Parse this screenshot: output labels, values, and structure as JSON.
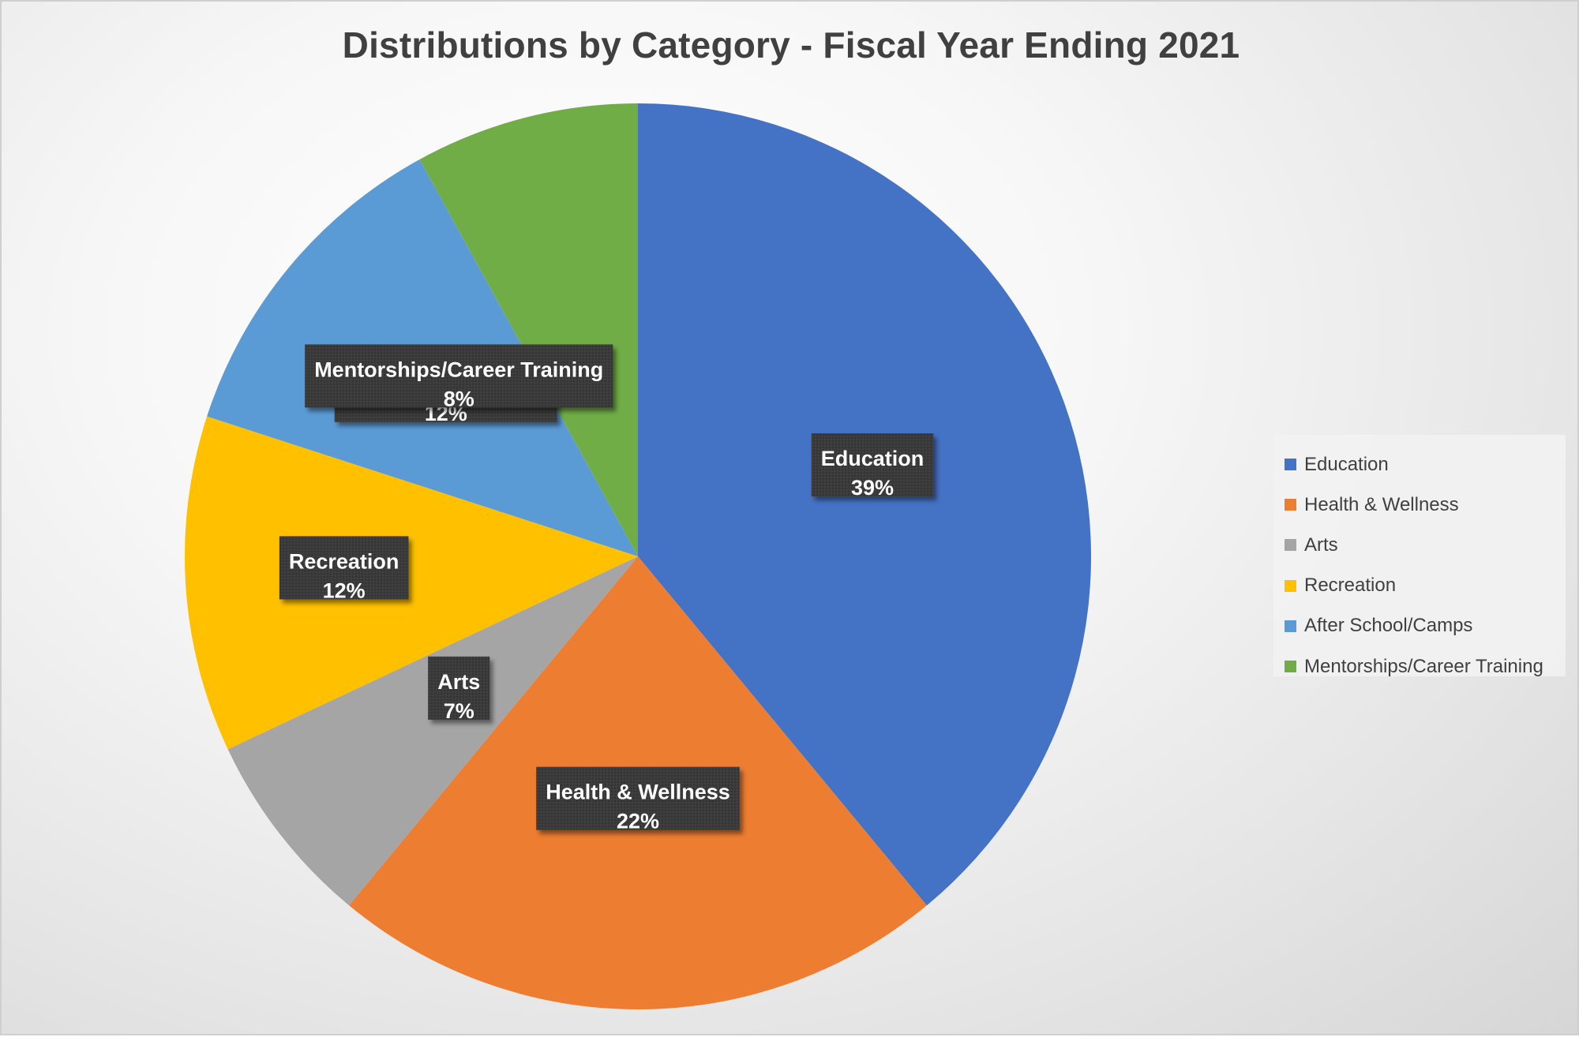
{
  "chart_data": {
    "type": "pie",
    "title": "Distributions by Category - Fiscal Year Ending 2021",
    "categories": [
      "Education",
      "Health & Wellness",
      "Arts",
      "Recreation",
      "After School/Camps",
      "Mentorships/Career Training"
    ],
    "values": [
      39,
      22,
      7,
      12,
      12,
      8
    ],
    "data_labels": [
      "39%",
      "22%",
      "7%",
      "12%",
      "12%",
      "8%"
    ],
    "colors": [
      "#4472C4",
      "#ED7D31",
      "#A5A5A5",
      "#FFC000",
      "#5B9BD5",
      "#70AD47"
    ],
    "legend_position": "right",
    "start_angle_deg": 0,
    "direction": "clockwise"
  }
}
